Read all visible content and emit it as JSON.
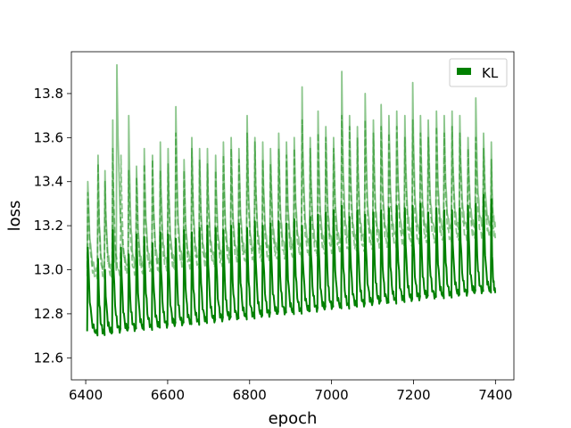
{
  "chart_data": {
    "type": "line",
    "title": "",
    "xlabel": "epoch",
    "ylabel": "loss",
    "xlim": [
      6365,
      7445
    ],
    "ylim": [
      12.5,
      13.99
    ],
    "xticks": [
      6400,
      6600,
      6800,
      7000,
      7200,
      7400
    ],
    "xtick_labels": [
      "6400",
      "6600",
      "6800",
      "7000",
      "7200",
      "7400"
    ],
    "yticks": [
      12.6,
      12.8,
      13.0,
      13.2,
      13.4,
      13.6,
      13.8
    ],
    "ytick_labels": [
      "12.6",
      "12.8",
      "13.0",
      "13.2",
      "13.4",
      "13.6",
      "13.8"
    ],
    "grid": false,
    "legend": {
      "placement": "top-right",
      "entries": [
        "KL"
      ]
    },
    "x_range": [
      6400,
      7400
    ],
    "series": [
      {
        "name": "KL",
        "color": "#008000",
        "style": "solid",
        "peaks": [
          [
            6405,
            13.1
          ],
          [
            6430,
            13.05
          ],
          [
            6447,
            13.0
          ],
          [
            6466,
            13.18
          ],
          [
            6486,
            13.1
          ],
          [
            6505,
            13.07
          ],
          [
            6524,
            13.16
          ],
          [
            6543,
            13.15
          ],
          [
            6563,
            13.12
          ],
          [
            6582,
            13.17
          ],
          [
            6601,
            13.16
          ],
          [
            6620,
            13.14
          ],
          [
            6640,
            13.18
          ],
          [
            6659,
            13.17
          ],
          [
            6678,
            13.19
          ],
          [
            6697,
            13.2
          ],
          [
            6717,
            13.19
          ],
          [
            6736,
            13.18
          ],
          [
            6755,
            13.2
          ],
          [
            6774,
            13.21
          ],
          [
            6794,
            13.19
          ],
          [
            6813,
            13.22
          ],
          [
            6832,
            13.2
          ],
          [
            6851,
            13.21
          ],
          [
            6871,
            13.22
          ],
          [
            6890,
            13.21
          ],
          [
            6909,
            13.23
          ],
          [
            6928,
            13.2
          ],
          [
            6948,
            13.24
          ],
          [
            6967,
            13.25
          ],
          [
            6986,
            13.26
          ],
          [
            7005,
            13.27
          ],
          [
            7025,
            13.29
          ],
          [
            7044,
            13.24
          ],
          [
            7063,
            13.27
          ],
          [
            7082,
            13.25
          ],
          [
            7102,
            13.26
          ],
          [
            7121,
            13.27
          ],
          [
            7140,
            13.28
          ],
          [
            7159,
            13.29
          ],
          [
            7179,
            13.28
          ],
          [
            7198,
            13.29
          ],
          [
            7217,
            13.3
          ],
          [
            7236,
            13.26
          ],
          [
            7256,
            13.28
          ],
          [
            7275,
            13.27
          ],
          [
            7294,
            13.27
          ],
          [
            7313,
            13.28
          ],
          [
            7333,
            13.29
          ],
          [
            7352,
            13.3
          ],
          [
            7371,
            13.34
          ],
          [
            7390,
            13.32
          ]
        ],
        "trough_start": 12.7,
        "trough_end": 12.9
      },
      {
        "name": "",
        "color": "#008000",
        "opacity": 0.45,
        "style": "solid",
        "peaks": [
          [
            6405,
            13.4
          ],
          [
            6430,
            13.52
          ],
          [
            6447,
            13.45
          ],
          [
            6466,
            13.68
          ],
          [
            6476,
            13.93
          ],
          [
            6505,
            13.7
          ],
          [
            6524,
            13.47
          ],
          [
            6543,
            13.55
          ],
          [
            6563,
            13.52
          ],
          [
            6582,
            13.58
          ],
          [
            6601,
            13.55
          ],
          [
            6620,
            13.74
          ],
          [
            6640,
            13.5
          ],
          [
            6659,
            13.6
          ],
          [
            6678,
            13.55
          ],
          [
            6697,
            13.55
          ],
          [
            6717,
            13.52
          ],
          [
            6736,
            13.58
          ],
          [
            6755,
            13.6
          ],
          [
            6774,
            13.55
          ],
          [
            6794,
            13.7
          ],
          [
            6813,
            13.6
          ],
          [
            6832,
            13.58
          ],
          [
            6851,
            13.55
          ],
          [
            6871,
            13.62
          ],
          [
            6890,
            13.58
          ],
          [
            6909,
            13.6
          ],
          [
            6928,
            13.83
          ],
          [
            6948,
            13.6
          ],
          [
            6967,
            13.72
          ],
          [
            6986,
            13.65
          ],
          [
            7005,
            13.6
          ],
          [
            7025,
            13.9
          ],
          [
            7044,
            13.7
          ],
          [
            7063,
            13.65
          ],
          [
            7082,
            13.8
          ],
          [
            7102,
            13.68
          ],
          [
            7121,
            13.75
          ],
          [
            7140,
            13.7
          ],
          [
            7159,
            13.72
          ],
          [
            7179,
            13.7
          ],
          [
            7198,
            13.85
          ],
          [
            7217,
            13.7
          ],
          [
            7236,
            13.68
          ],
          [
            7256,
            13.72
          ],
          [
            7275,
            13.7
          ],
          [
            7294,
            13.72
          ],
          [
            7313,
            13.7
          ],
          [
            7333,
            13.6
          ],
          [
            7352,
            13.78
          ],
          [
            7371,
            13.62
          ],
          [
            7390,
            13.58
          ]
        ],
        "trough_start": 12.98,
        "trough_end": 13.2
      },
      {
        "name": "",
        "color": "#008000",
        "opacity": 0.45,
        "style": "dashed",
        "peaks": [
          [
            6405,
            13.35
          ],
          [
            6430,
            13.48
          ],
          [
            6447,
            13.4
          ],
          [
            6466,
            13.55
          ],
          [
            6486,
            13.52
          ],
          [
            6505,
            13.45
          ],
          [
            6524,
            13.42
          ],
          [
            6543,
            13.48
          ],
          [
            6563,
            13.5
          ],
          [
            6582,
            13.45
          ],
          [
            6601,
            13.48
          ],
          [
            6620,
            13.62
          ],
          [
            6640,
            13.45
          ],
          [
            6659,
            13.55
          ],
          [
            6678,
            13.5
          ],
          [
            6697,
            13.48
          ],
          [
            6717,
            13.45
          ],
          [
            6736,
            13.52
          ],
          [
            6755,
            13.55
          ],
          [
            6774,
            13.5
          ],
          [
            6794,
            13.62
          ],
          [
            6813,
            13.58
          ],
          [
            6832,
            13.5
          ],
          [
            6851,
            13.48
          ],
          [
            6871,
            13.55
          ],
          [
            6890,
            13.52
          ],
          [
            6909,
            13.55
          ],
          [
            6928,
            13.68
          ],
          [
            6948,
            13.55
          ],
          [
            6967,
            13.62
          ],
          [
            6986,
            13.6
          ],
          [
            7005,
            13.55
          ],
          [
            7025,
            13.7
          ],
          [
            7044,
            13.65
          ],
          [
            7063,
            13.6
          ],
          [
            7082,
            13.68
          ],
          [
            7102,
            13.62
          ],
          [
            7121,
            13.65
          ],
          [
            7140,
            13.62
          ],
          [
            7159,
            13.65
          ],
          [
            7179,
            13.6
          ],
          [
            7198,
            13.68
          ],
          [
            7217,
            13.62
          ],
          [
            7236,
            13.6
          ],
          [
            7256,
            13.65
          ],
          [
            7275,
            13.62
          ],
          [
            7294,
            13.65
          ],
          [
            7313,
            13.62
          ],
          [
            7333,
            13.55
          ],
          [
            7352,
            13.6
          ],
          [
            7371,
            13.55
          ],
          [
            7390,
            13.5
          ]
        ],
        "trough_start": 12.95,
        "trough_end": 13.15
      }
    ]
  }
}
